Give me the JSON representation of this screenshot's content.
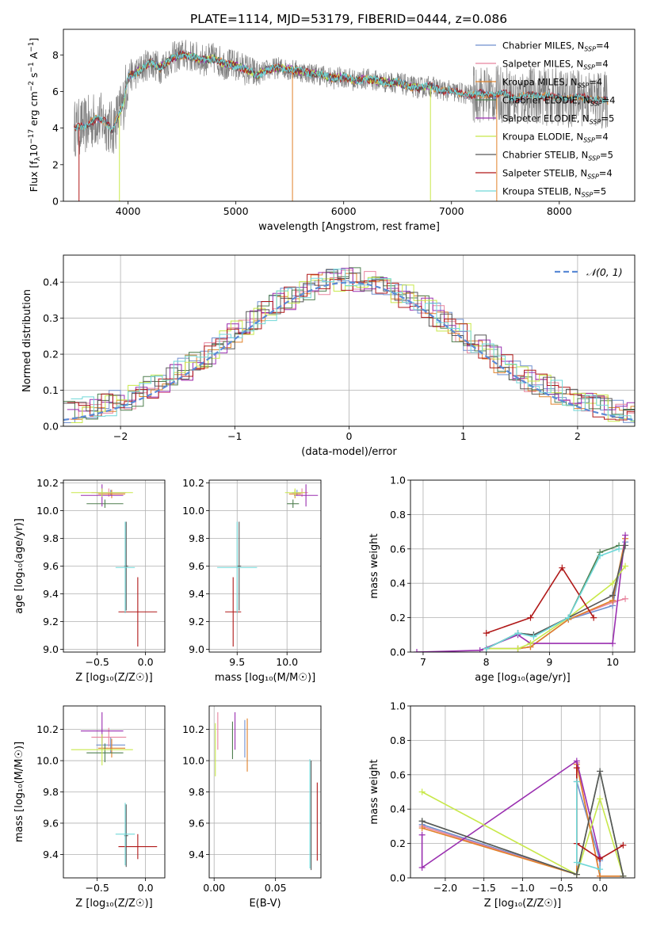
{
  "title": "PLATE=1114, MJD=53179, FIBERID=0444, z=0.086",
  "colors": {
    "Chabrier MILES": "#6f8fcf",
    "Salpeter MILES": "#e8849e",
    "Kroupa MILES": "#e0822a",
    "Chabrier ELODIE": "#4f7f4f",
    "Salpeter ELODIE": "#9a2fb0",
    "Kroupa ELODIE": "#c8e84a",
    "Chabrier STELIB": "#585858",
    "Salpeter STELIB": "#b01818",
    "Kroupa STELIB": "#6fd8d8"
  },
  "chart_data": [
    {
      "id": "spectrum",
      "type": "line",
      "xlabel": "wavelength [Angstrom, rest frame]",
      "ylabel_parts": [
        "Flux [f",
        "λ",
        "10",
        "−17",
        " erg cm",
        "−2",
        " s",
        "−1",
        " A",
        "−1",
        "]"
      ],
      "xlim": [
        3400,
        8700
      ],
      "ylim": [
        0,
        9.4
      ],
      "xticks": [
        4000,
        5000,
        6000,
        7000,
        8000
      ],
      "yticks": [
        0,
        2,
        4,
        6,
        8
      ],
      "legend": [
        {
          "name": "Chabrier MILES",
          "n": "4"
        },
        {
          "name": "Salpeter MILES",
          "n": "4"
        },
        {
          "name": "Kroupa MILES",
          "n": "4"
        },
        {
          "name": "Chabrier ELODIE",
          "n": "4"
        },
        {
          "name": "Salpeter ELODIE",
          "n": "5"
        },
        {
          "name": "Kroupa ELODIE",
          "n": "4"
        },
        {
          "name": "Chabrier STELIB",
          "n": "5"
        },
        {
          "name": "Salpeter STELIB",
          "n": "4"
        },
        {
          "name": "Kroupa STELIB",
          "n": "5"
        }
      ],
      "legend_placement": "upper right",
      "model_continuum": [
        [
          3500,
          4.0
        ],
        [
          3600,
          4.1
        ],
        [
          3700,
          4.5
        ],
        [
          3800,
          4.3
        ],
        [
          3850,
          3.9
        ],
        [
          3950,
          5.2
        ],
        [
          4000,
          6.8
        ],
        [
          4100,
          7.1
        ],
        [
          4200,
          7.6
        ],
        [
          4300,
          7.3
        ],
        [
          4400,
          7.8
        ],
        [
          4500,
          8.0
        ],
        [
          4600,
          7.9
        ],
        [
          4700,
          7.7
        ],
        [
          4800,
          7.8
        ],
        [
          4900,
          7.5
        ],
        [
          5000,
          7.4
        ],
        [
          5100,
          7.2
        ],
        [
          5200,
          6.9
        ],
        [
          5300,
          7.2
        ],
        [
          5400,
          7.3
        ],
        [
          5500,
          7.2
        ],
        [
          5600,
          7.1
        ],
        [
          5700,
          7.0
        ],
        [
          5800,
          6.9
        ],
        [
          5900,
          6.7
        ],
        [
          6000,
          6.8
        ],
        [
          6100,
          6.6
        ],
        [
          6200,
          6.7
        ],
        [
          6300,
          6.6
        ],
        [
          6400,
          6.5
        ],
        [
          6500,
          6.5
        ],
        [
          6600,
          6.3
        ],
        [
          6700,
          6.2
        ],
        [
          6800,
          6.3
        ],
        [
          6900,
          6.1
        ],
        [
          7000,
          6.0
        ],
        [
          7100,
          5.9
        ],
        [
          7200,
          5.8
        ],
        [
          7300,
          5.9
        ],
        [
          7400,
          5.8
        ],
        [
          7500,
          5.9
        ],
        [
          7600,
          5.6
        ],
        [
          7700,
          5.8
        ],
        [
          7800,
          5.8
        ],
        [
          7900,
          5.7
        ],
        [
          8000,
          5.7
        ],
        [
          8100,
          5.6
        ],
        [
          8200,
          5.7
        ],
        [
          8300,
          5.6
        ],
        [
          8400,
          5.5
        ]
      ]
    },
    {
      "id": "residuals",
      "type": "step-histogram",
      "xlabel": "(data-model)/error",
      "ylabel": "Normed distribution",
      "xlim": [
        -2.5,
        2.5
      ],
      "ylim": [
        0,
        0.475
      ],
      "xticks": [
        -2,
        -1,
        0,
        1,
        2
      ],
      "yticks": [
        0.0,
        0.1,
        0.2,
        0.3,
        0.4
      ],
      "legend": [
        {
          "name": "𝒩(0, 1)"
        }
      ],
      "legend_placement": "upper right",
      "grid": true
    },
    {
      "id": "age_vs_Z",
      "type": "errorbar",
      "xlabel": "Z [log₁₀(Z/Z☉)]",
      "ylabel": "age  [log₁₀(age/yr)]",
      "xlim": [
        -0.85,
        0.2
      ],
      "ylim": [
        8.98,
        10.22
      ],
      "xticks": [
        -0.5,
        0.0
      ],
      "yticks": [
        9.0,
        9.2,
        9.4,
        9.6,
        9.8,
        10.0,
        10.2
      ],
      "grid": true,
      "points": [
        {
          "s": "Chabrier MILES",
          "x": -0.36,
          "xerr": 0.15,
          "y": 10.13,
          "yerr": 0.02
        },
        {
          "s": "Salpeter MILES",
          "x": -0.38,
          "xerr": 0.18,
          "y": 10.13,
          "yerr": 0.03
        },
        {
          "s": "Kroupa MILES",
          "x": -0.35,
          "xerr": 0.14,
          "y": 10.12,
          "yerr": 0.03
        },
        {
          "s": "Chabrier ELODIE",
          "x": -0.42,
          "xerr": 0.19,
          "y": 10.05,
          "yerr": 0.03
        },
        {
          "s": "Salpeter ELODIE",
          "x": -0.45,
          "xerr": 0.22,
          "y": 10.11,
          "yerr": 0.08
        },
        {
          "s": "Kroupa ELODIE",
          "x": -0.45,
          "xerr": 0.32,
          "y": 10.13,
          "yerr": 0.03
        },
        {
          "s": "Chabrier STELIB",
          "x": -0.2,
          "xerr": 0.02,
          "y": 9.6,
          "yerr": 0.32
        },
        {
          "s": "Salpeter STELIB",
          "x": -0.08,
          "xerr": 0.2,
          "y": 9.27,
          "yerr": 0.25
        },
        {
          "s": "Kroupa STELIB",
          "x": -0.21,
          "xerr": 0.1,
          "y": 9.59,
          "yerr": 0.33
        }
      ]
    },
    {
      "id": "age_vs_mass",
      "type": "errorbar",
      "xlabel": "mass [log₁₀(M/M☉)]",
      "ylabel": "",
      "xlim": [
        9.22,
        10.34
      ],
      "ylim": [
        8.98,
        10.22
      ],
      "xticks": [
        9.5,
        10.0
      ],
      "yticks": [
        9.0,
        9.2,
        9.4,
        9.6,
        9.8,
        10.0,
        10.2
      ],
      "grid": true,
      "points": [
        {
          "s": "Chabrier MILES",
          "x": 10.1,
          "xerr": 0.05,
          "y": 10.13,
          "yerr": 0.02
        },
        {
          "s": "Salpeter MILES",
          "x": 10.15,
          "xerr": 0.06,
          "y": 10.13,
          "yerr": 0.03
        },
        {
          "s": "Kroupa MILES",
          "x": 10.08,
          "xerr": 0.06,
          "y": 10.12,
          "yerr": 0.03
        },
        {
          "s": "Chabrier ELODIE",
          "x": 10.06,
          "xerr": 0.06,
          "y": 10.05,
          "yerr": 0.03
        },
        {
          "s": "Salpeter ELODIE",
          "x": 10.19,
          "xerr": 0.12,
          "y": 10.11,
          "yerr": 0.08
        },
        {
          "s": "Kroupa ELODIE",
          "x": 10.08,
          "xerr": 0.1,
          "y": 10.13,
          "yerr": 0.03
        },
        {
          "s": "Chabrier STELIB",
          "x": 9.52,
          "xerr": 0.02,
          "y": 9.6,
          "yerr": 0.32
        },
        {
          "s": "Salpeter STELIB",
          "x": 9.46,
          "xerr": 0.08,
          "y": 9.27,
          "yerr": 0.25
        },
        {
          "s": "Kroupa STELIB",
          "x": 9.5,
          "xerr": 0.2,
          "y": 9.59,
          "yerr": 0.33
        }
      ]
    },
    {
      "id": "mass_weight_vs_age",
      "type": "line",
      "xlabel": "age  [log₁₀(age/yr)]",
      "ylabel": "mass weight",
      "xlim": [
        6.8,
        10.35
      ],
      "ylim": [
        0,
        1.0
      ],
      "xticks": [
        7,
        8,
        9,
        10
      ],
      "yticks": [
        0.0,
        0.2,
        0.4,
        0.6,
        0.8,
        1.0
      ],
      "grid": true,
      "series": [
        {
          "s": "Chabrier MILES",
          "x": [
            8.0,
            8.5,
            8.7,
            9.3,
            10.0,
            10.2
          ],
          "y": [
            0.02,
            0.02,
            0.03,
            0.19,
            0.27,
            0.64
          ]
        },
        {
          "s": "Salpeter MILES",
          "x": [
            8.0,
            8.5,
            8.7,
            9.3,
            10.0,
            10.2
          ],
          "y": [
            0.02,
            0.02,
            0.03,
            0.19,
            0.29,
            0.31
          ]
        },
        {
          "s": "Kroupa MILES",
          "x": [
            8.0,
            8.5,
            8.7,
            9.3,
            10.0,
            10.2
          ],
          "y": [
            0.02,
            0.02,
            0.03,
            0.19,
            0.3,
            0.66
          ]
        },
        {
          "s": "Chabrier ELODIE",
          "x": [
            8.0,
            8.5,
            8.75,
            9.3,
            9.8,
            10.1
          ],
          "y": [
            0.02,
            0.11,
            0.1,
            0.2,
            0.58,
            0.62
          ]
        },
        {
          "s": "Salpeter ELODIE",
          "x": [
            6.9,
            7.9,
            8.5,
            8.7,
            10.0,
            10.2
          ],
          "y": [
            0.0,
            0.01,
            0.1,
            0.05,
            0.05,
            0.68
          ]
        },
        {
          "s": "Kroupa ELODIE",
          "x": [
            8.0,
            8.5,
            8.7,
            9.3,
            10.0,
            10.2
          ],
          "y": [
            0.02,
            0.02,
            0.05,
            0.2,
            0.4,
            0.5
          ]
        },
        {
          "s": "Chabrier STELIB",
          "x": [
            8.0,
            8.5,
            8.75,
            9.3,
            10.0,
            10.2
          ],
          "y": [
            0.02,
            0.11,
            0.1,
            0.2,
            0.33,
            0.62
          ]
        },
        {
          "s": "Salpeter STELIB",
          "x": [
            8.0,
            8.7,
            9.2,
            9.7
          ],
          "y": [
            0.11,
            0.2,
            0.49,
            0.2
          ]
        },
        {
          "s": "Kroupa STELIB",
          "x": [
            8.0,
            8.5,
            8.75,
            9.3,
            9.8,
            10.1
          ],
          "y": [
            0.02,
            0.11,
            0.09,
            0.2,
            0.56,
            0.6
          ]
        }
      ]
    },
    {
      "id": "mass_vs_Z",
      "type": "errorbar",
      "xlabel": "Z [log₁₀(Z/Z☉)]",
      "ylabel": "mass [log₁₀(M/M☉)]",
      "xlim": [
        -0.85,
        0.2
      ],
      "ylim": [
        9.25,
        10.35
      ],
      "xticks": [
        -0.5,
        0.0
      ],
      "yticks": [
        9.4,
        9.6,
        9.8,
        10.0,
        10.2
      ],
      "grid": true,
      "points": [
        {
          "s": "Chabrier MILES",
          "x": -0.36,
          "xerr": 0.15,
          "y": 10.1,
          "yerr": 0.05
        },
        {
          "s": "Salpeter MILES",
          "x": -0.38,
          "xerr": 0.18,
          "y": 10.15,
          "yerr": 0.06
        },
        {
          "s": "Kroupa MILES",
          "x": -0.35,
          "xerr": 0.14,
          "y": 10.08,
          "yerr": 0.06
        },
        {
          "s": "Chabrier ELODIE",
          "x": -0.42,
          "xerr": 0.19,
          "y": 10.05,
          "yerr": 0.06
        },
        {
          "s": "Salpeter ELODIE",
          "x": -0.45,
          "xerr": 0.22,
          "y": 10.19,
          "yerr": 0.12
        },
        {
          "s": "Kroupa ELODIE",
          "x": -0.45,
          "xerr": 0.32,
          "y": 10.07,
          "yerr": 0.1
        },
        {
          "s": "Chabrier STELIB",
          "x": -0.2,
          "xerr": 0.02,
          "y": 9.52,
          "yerr": 0.2
        },
        {
          "s": "Salpeter STELIB",
          "x": -0.08,
          "xerr": 0.2,
          "y": 9.45,
          "yerr": 0.08
        },
        {
          "s": "Kroupa STELIB",
          "x": -0.21,
          "xerr": 0.1,
          "y": 9.53,
          "yerr": 0.2
        }
      ]
    },
    {
      "id": "mass_vs_ebv",
      "type": "errorbar",
      "xlabel": "E(B-V)",
      "ylabel": "",
      "xlim": [
        -0.004,
        0.087
      ],
      "ylim": [
        9.25,
        10.35
      ],
      "xticks": [
        0.0,
        0.05
      ],
      "yticks": [
        9.4,
        9.6,
        9.8,
        10.0,
        10.2
      ],
      "grid": true,
      "points": [
        {
          "s": "Chabrier MILES",
          "x": 0.025,
          "y": 10.14,
          "yerr": 0.12
        },
        {
          "s": "Salpeter MILES",
          "x": 0.003,
          "y": 10.19,
          "yerr": 0.12
        },
        {
          "s": "Kroupa MILES",
          "x": 0.027,
          "y": 10.1,
          "yerr": 0.17
        },
        {
          "s": "Chabrier ELODIE",
          "x": 0.015,
          "y": 10.13,
          "yerr": 0.12
        },
        {
          "s": "Salpeter ELODIE",
          "x": 0.017,
          "y": 10.19,
          "yerr": 0.12
        },
        {
          "s": "Kroupa ELODIE",
          "x": 0.001,
          "y": 10.07,
          "yerr": 0.17
        },
        {
          "s": "Chabrier STELIB",
          "x": 0.079,
          "y": 9.65,
          "yerr": 0.35
        },
        {
          "s": "Salpeter STELIB",
          "x": 0.084,
          "y": 9.61,
          "yerr": 0.25
        },
        {
          "s": "Kroupa STELIB",
          "x": 0.078,
          "y": 9.66,
          "yerr": 0.35
        }
      ]
    },
    {
      "id": "mass_weight_vs_Z",
      "type": "line",
      "xlabel": "Z [log₁₀(Z/Z☉)]",
      "ylabel": "mass weight",
      "xlim": [
        -2.45,
        0.45
      ],
      "ylim": [
        0,
        1.0
      ],
      "xticks": [
        -2.0,
        -1.5,
        -1.0,
        -0.5,
        0.0
      ],
      "yticks": [
        0.0,
        0.2,
        0.4,
        0.6,
        0.8,
        1.0
      ],
      "grid": true,
      "series": [
        {
          "s": "Chabrier MILES",
          "x": [
            -2.3,
            -0.3,
            -0.3,
            0.0,
            0.0,
            0.3
          ],
          "y": [
            0.31,
            0.02,
            0.56,
            0.1,
            0.01,
            0.01
          ]
        },
        {
          "s": "Salpeter MILES",
          "x": [
            -2.3,
            -0.3,
            -0.3,
            0.0,
            0.3
          ],
          "y": [
            0.3,
            0.02,
            0.67,
            0.01,
            0.01
          ]
        },
        {
          "s": "Kroupa MILES",
          "x": [
            -2.3,
            -0.3,
            -0.3,
            0.0,
            0.3
          ],
          "y": [
            0.29,
            0.02,
            0.66,
            0.01,
            0.01
          ]
        },
        {
          "s": "Chabrier ELODIE",
          "x": [
            -2.3,
            -0.3,
            0.0,
            0.3
          ],
          "y": [
            0.33,
            0.02,
            0.62,
            0.01
          ]
        },
        {
          "s": "Salpeter ELODIE",
          "x": [
            -2.3,
            -2.3,
            -0.3,
            0.0
          ],
          "y": [
            0.25,
            0.06,
            0.68,
            0.12
          ]
        },
        {
          "s": "Kroupa ELODIE",
          "x": [
            -2.3,
            -0.3,
            0.0,
            0.3
          ],
          "y": [
            0.5,
            0.02,
            0.46,
            0.01
          ]
        },
        {
          "s": "Chabrier STELIB",
          "x": [
            -2.3,
            -0.3,
            0.0,
            0.3
          ],
          "y": [
            0.33,
            0.02,
            0.62,
            0.01
          ]
        },
        {
          "s": "Salpeter STELIB",
          "x": [
            -0.3,
            -0.3,
            0.0,
            0.3
          ],
          "y": [
            0.64,
            0.2,
            0.11,
            0.19
          ]
        },
        {
          "s": "Kroupa STELIB",
          "x": [
            -0.3,
            -0.3,
            0.0
          ],
          "y": [
            0.56,
            0.09,
            0.05
          ]
        }
      ]
    }
  ]
}
